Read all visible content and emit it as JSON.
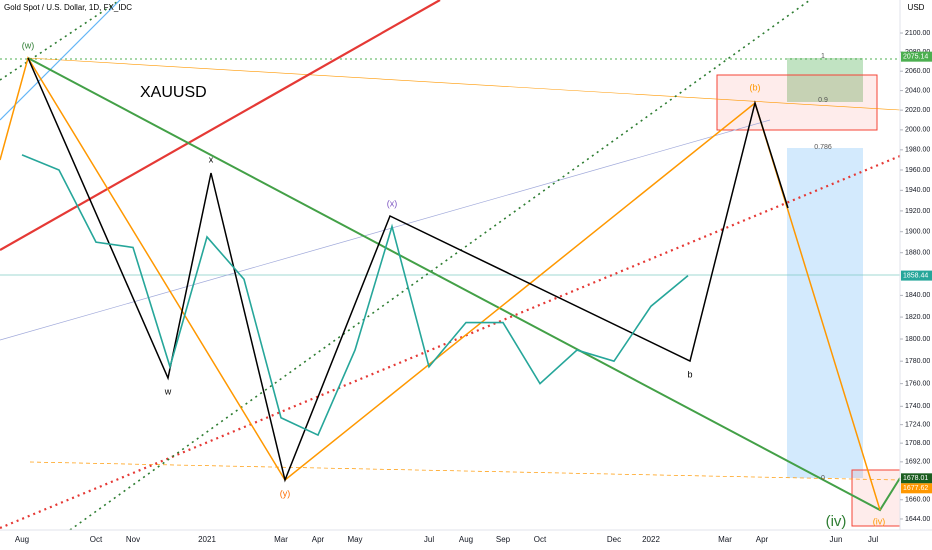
{
  "chart_data": {
    "type": "line",
    "title": "Gold Spot / U.S. Dollar, 1D, FX_IDC",
    "symbol": "XAUUSD",
    "unit": "USD",
    "categories": [
      "Aug",
      null,
      "Oct",
      "Nov",
      null,
      "2021",
      null,
      "Mar",
      "Apr",
      "May",
      null,
      "Jul",
      "Aug",
      "Sep",
      "Oct",
      null,
      "Dec",
      "2022",
      null,
      "Mar",
      "Apr",
      null,
      "Jun",
      "Jul"
    ],
    "series": [
      {
        "name": "XAUUSD",
        "color": "#26a69a",
        "values": [
          1975,
          1960,
          1890,
          1885,
          1775,
          1895,
          1855,
          1730,
          1715,
          1790,
          1905,
          1775,
          1815,
          1815,
          1760,
          1790,
          1780,
          1830,
          1858.44,
          null,
          null,
          null,
          null,
          null
        ]
      }
    ],
    "log_scale": true,
    "ylim": [
      1640,
      2110
    ],
    "yticks": [
      {
        "value": 2100,
        "label": "2100.00"
      },
      {
        "value": 2080,
        "label": "2080.00"
      },
      {
        "value": 2060,
        "label": "2060.00"
      },
      {
        "value": 2040,
        "label": "2040.00"
      },
      {
        "value": 2020,
        "label": "2020.00"
      },
      {
        "value": 2000,
        "label": "2000.00"
      },
      {
        "value": 1980,
        "label": "1980.00"
      },
      {
        "value": 1960,
        "label": "1960.00"
      },
      {
        "value": 1940,
        "label": "1940.00"
      },
      {
        "value": 1920,
        "label": "1920.00"
      },
      {
        "value": 1900,
        "label": "1900.00"
      },
      {
        "value": 1880,
        "label": "1880.00"
      },
      {
        "value": 1840,
        "label": "1840.00"
      },
      {
        "value": 1820,
        "label": "1820.00"
      },
      {
        "value": 1800,
        "label": "1800.00"
      },
      {
        "value": 1780,
        "label": "1780.00"
      },
      {
        "value": 1760,
        "label": "1760.00"
      },
      {
        "value": 1740,
        "label": "1740.00"
      },
      {
        "value": 1724,
        "label": "1724.00"
      },
      {
        "value": 1708,
        "label": "1708.00"
      },
      {
        "value": 1692,
        "label": "1692.00"
      },
      {
        "value": 1660,
        "label": "1660.00"
      },
      {
        "value": 1644,
        "label": "1644.00"
      }
    ],
    "price_tags": [
      2075.14,
      1858.44,
      1678.01,
      1677.62
    ],
    "price_tag_colors": [
      "#4caf50",
      "#26a69a",
      "#1b5e20",
      "#ff9800"
    ],
    "annotations": [
      "(w)",
      "x",
      "w",
      "(x)",
      "(y)",
      "b",
      "(b)",
      "(iv)",
      "(iv)"
    ],
    "fib_labels": [
      "1",
      "0.9",
      "0.786",
      "0"
    ]
  }
}
